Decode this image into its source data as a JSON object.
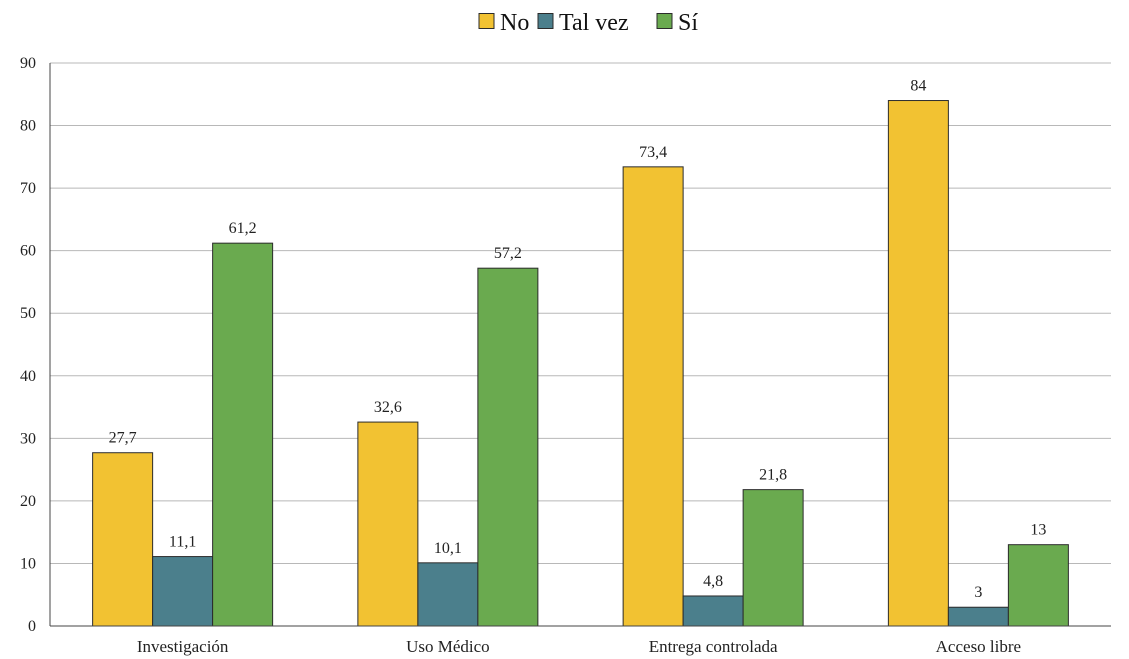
{
  "chart_data": {
    "type": "bar",
    "categories": [
      "Investigación",
      "Uso Médico",
      "Entrega controlada",
      "Acceso libre"
    ],
    "series": [
      {
        "name": "No",
        "color": "#F2C232",
        "values": [
          27.7,
          32.6,
          73.4,
          84
        ],
        "labels": [
          "27,7",
          "32,6",
          "73,4",
          "84"
        ]
      },
      {
        "name": "Tal vez",
        "color": "#4B7F8C",
        "values": [
          11.1,
          10.1,
          4.8,
          3
        ],
        "labels": [
          "11,1",
          "10,1",
          "4,8",
          "3"
        ]
      },
      {
        "name": "Sí",
        "color": "#6AAA4F",
        "values": [
          61.2,
          57.2,
          21.8,
          13
        ],
        "labels": [
          "61,2",
          "57,2",
          "21,8",
          "13"
        ]
      }
    ],
    "ylim": [
      0,
      90
    ],
    "yticks": [
      0,
      10,
      20,
      30,
      40,
      50,
      60,
      70,
      80,
      90
    ],
    "grid": true,
    "legend_position": "top-center",
    "title": "",
    "xlabel": "",
    "ylabel": ""
  }
}
